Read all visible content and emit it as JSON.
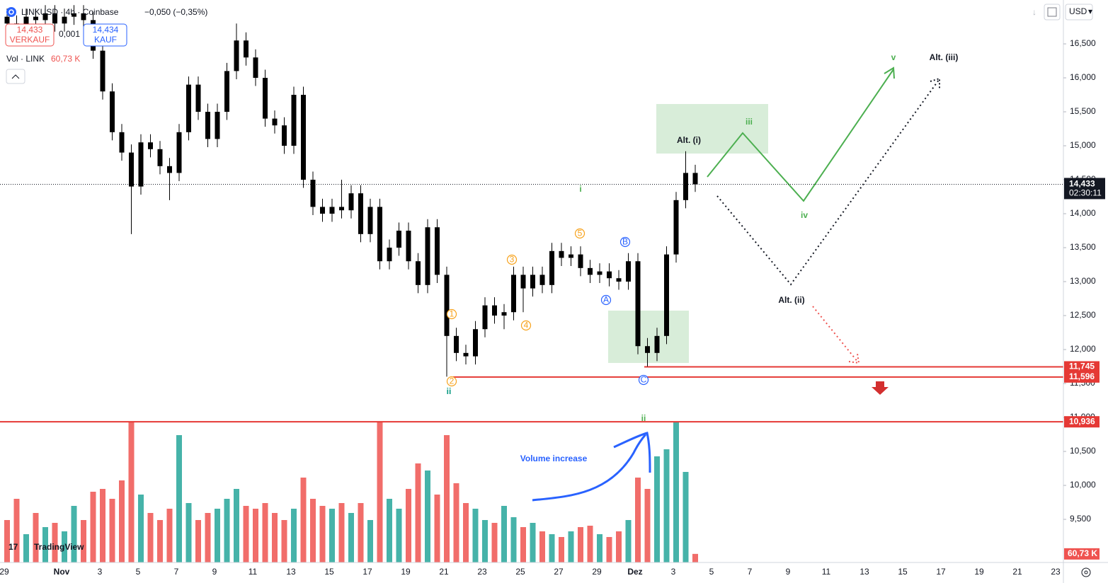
{
  "header": {
    "symbol": "LINKUSD · 4h · Coinbase",
    "change": "−0,050 (−0,35%)",
    "bid": "14,433",
    "bid_label": "VERKAUF",
    "spread": "0,001",
    "ask": "14,434",
    "ask_label": "KAUF",
    "volume_title": "Vol · LINK",
    "currency": "USD",
    "brand": "TradingView"
  },
  "chart_data": {
    "type": "candlestick",
    "ylim": [
      8.865,
      17.146
    ],
    "yticks": [
      {
        "value": 9.5,
        "label": "9,500"
      },
      {
        "value": 10,
        "label": "10,000"
      },
      {
        "value": 10.5,
        "label": "10,500"
      },
      {
        "value": 11,
        "label": "11,000"
      },
      {
        "value": 11.5,
        "label": "11,500"
      },
      {
        "value": 12,
        "label": "12,000"
      },
      {
        "value": 12.5,
        "label": "12,500"
      },
      {
        "value": 13,
        "label": "13,000"
      },
      {
        "value": 13.5,
        "label": "13,500"
      },
      {
        "value": 14,
        "label": "14,000"
      },
      {
        "value": 14.5,
        "label": "14,500"
      },
      {
        "value": 15,
        "label": "15,000"
      },
      {
        "value": 15.5,
        "label": "15,500"
      },
      {
        "value": 16,
        "label": "16,000"
      },
      {
        "value": 16.5,
        "label": "16,500"
      }
    ],
    "x_labels": [
      "29",
      "Nov",
      "3",
      "5",
      "7",
      "9",
      "11",
      "13",
      "15",
      "17",
      "19",
      "21",
      "23",
      "25",
      "27",
      "29",
      "Dez",
      "3",
      "5",
      "7",
      "9",
      "11",
      "13",
      "15",
      "17",
      "19",
      "21",
      "23"
    ],
    "grid": false,
    "candle_color": "#000000",
    "open": [
      16.9,
      16.8,
      16.75,
      16.9,
      16.85,
      16.95,
      16.8,
      16.9,
      16.95,
      16.85,
      16.4,
      15.8,
      15.2,
      14.9,
      14.4,
      15.05,
      14.95,
      14.7,
      14.6,
      15.2,
      15.9,
      15.5,
      15.1,
      15.5,
      16.1,
      16.55,
      16.3,
      16.0,
      15.4,
      15.3,
      15.0,
      15.75,
      14.5,
      14.1,
      14.0,
      14.1,
      14.05,
      14.3,
      13.7,
      14.1,
      13.3,
      13.5,
      13.75,
      13.3,
      12.95,
      13.8,
      13.1,
      12.2,
      11.95,
      11.9,
      12.3,
      12.65,
      12.5,
      12.55,
      13.1,
      12.9,
      13.1,
      12.95,
      13.45,
      13.35,
      13.4,
      13.2,
      13.1,
      13.15,
      13.05,
      13.0,
      13.3,
      12.05,
      11.95,
      12.2,
      13.4,
      14.2,
      14.6
    ],
    "high": [
      17.02,
      16.92,
      17.02,
      17.02,
      17.07,
      17.07,
      17.02,
      17.07,
      17.07,
      16.97,
      16.52,
      15.92,
      15.32,
      15.02,
      15.17,
      15.17,
      15.07,
      14.82,
      15.32,
      16.02,
      16.02,
      15.62,
      15.62,
      16.22,
      16.8,
      16.67,
      16.42,
      16.12,
      15.52,
      15.42,
      15.87,
      15.87,
      14.62,
      14.22,
      14.22,
      14.5,
      14.42,
      14.42,
      14.22,
      14.22,
      13.62,
      13.87,
      13.87,
      13.42,
      13.92,
      13.92,
      13.22,
      12.32,
      12.07,
      12.42,
      12.77,
      12.77,
      12.67,
      13.22,
      13.22,
      13.22,
      13.22,
      13.57,
      13.57,
      13.52,
      13.52,
      13.32,
      13.27,
      13.27,
      13.17,
      13.42,
      13.42,
      12.17,
      12.32,
      13.52,
      14.32,
      14.92,
      14.72
    ],
    "low": [
      16.68,
      16.63,
      16.63,
      16.73,
      16.73,
      16.68,
      16.68,
      16.78,
      16.73,
      16.28,
      15.68,
      15.08,
      14.78,
      13.7,
      14.28,
      14.83,
      14.58,
      14.2,
      14.48,
      15.08,
      15.38,
      14.98,
      14.98,
      15.38,
      15.98,
      16.18,
      15.88,
      15.28,
      15.18,
      14.88,
      14.88,
      14.38,
      13.98,
      13.88,
      13.88,
      13.93,
      13.93,
      13.58,
      13.58,
      13.18,
      13.18,
      13.38,
      13.18,
      12.83,
      12.83,
      12.98,
      11.6,
      11.83,
      11.78,
      11.78,
      12.18,
      12.38,
      12.3,
      12.43,
      12.55,
      12.78,
      12.83,
      12.83,
      13.23,
      13.23,
      13.08,
      12.98,
      12.98,
      12.93,
      12.88,
      12.88,
      11.93,
      11.75,
      11.83,
      12.08,
      13.28,
      14.08,
      14.32
    ],
    "close": [
      16.8,
      16.75,
      16.9,
      16.85,
      16.95,
      16.8,
      16.9,
      16.95,
      16.85,
      16.4,
      15.8,
      15.2,
      14.9,
      14.4,
      15.05,
      14.95,
      14.7,
      14.6,
      15.2,
      15.9,
      15.5,
      15.1,
      15.5,
      16.1,
      16.55,
      16.3,
      16.0,
      15.4,
      15.3,
      15.0,
      15.75,
      14.5,
      14.1,
      14.0,
      14.1,
      14.05,
      14.3,
      13.7,
      14.1,
      13.3,
      13.5,
      13.75,
      13.3,
      12.95,
      13.8,
      13.1,
      12.2,
      11.95,
      11.9,
      12.3,
      12.65,
      12.5,
      12.55,
      13.1,
      12.9,
      13.1,
      12.95,
      13.45,
      13.35,
      13.4,
      13.2,
      13.1,
      13.15,
      13.05,
      13.0,
      13.3,
      12.05,
      11.95,
      12.2,
      13.4,
      14.2,
      14.6,
      14.433
    ],
    "volume": [
      300000,
      450000,
      200000,
      350000,
      250000,
      280000,
      220000,
      400000,
      300000,
      500000,
      520000,
      450000,
      580000,
      990000,
      480000,
      350000,
      300000,
      380000,
      900000,
      420000,
      300000,
      350000,
      380000,
      450000,
      520000,
      400000,
      380000,
      420000,
      350000,
      300000,
      380000,
      600000,
      450000,
      400000,
      380000,
      420000,
      350000,
      420000,
      300000,
      990000,
      450000,
      380000,
      520000,
      700000,
      650000,
      480000,
      900000,
      560000,
      420000,
      380000,
      300000,
      280000,
      400000,
      320000,
      250000,
      280000,
      220000,
      200000,
      180000,
      220000,
      250000,
      260000,
      200000,
      180000,
      220000,
      300000,
      600000,
      520000,
      750000,
      800000,
      990000,
      640000,
      60730
    ],
    "volume_last_label": "60,73 K",
    "volume_max": 1000000,
    "volume_up_color": "#26a69a",
    "volume_down_color": "#ef5350",
    "last_price": {
      "value": 14.433,
      "label": "14,433"
    },
    "countdown": "02:30:11",
    "levels": [
      {
        "value": 11.745,
        "label": "11,745"
      },
      {
        "value": 11.596,
        "label": "11,596"
      },
      {
        "value": 10.936,
        "label": "10,936"
      }
    ],
    "level_color": "#e53935",
    "annotations": [
      {
        "text": "Alt. (i)",
        "color": "#131722"
      },
      {
        "text": "iii",
        "color": "#4caf50"
      },
      {
        "text": "i",
        "color": "#4caf50"
      },
      {
        "text": "iv",
        "color": "#4caf50"
      },
      {
        "text": "v",
        "color": "#4caf50"
      },
      {
        "text": "Alt. (iii)",
        "color": "#131722"
      },
      {
        "text": "Alt. (ii)",
        "color": "#131722"
      },
      {
        "text": "ii",
        "color": "#089981"
      },
      {
        "text": "ii",
        "color": "#4caf50"
      },
      {
        "text": "Volume increase",
        "color": "#2962ff"
      }
    ],
    "markers": [
      {
        "text": "1",
        "color": "#f7a21b"
      },
      {
        "text": "2",
        "color": "#f7a21b"
      },
      {
        "text": "3",
        "color": "#f7a21b"
      },
      {
        "text": "4",
        "color": "#f7a21b"
      },
      {
        "text": "5",
        "color": "#f7a21b"
      },
      {
        "text": "A",
        "color": "#2962ff"
      },
      {
        "text": "B",
        "color": "#2962ff"
      },
      {
        "text": "C",
        "color": "#2962ff"
      }
    ]
  }
}
